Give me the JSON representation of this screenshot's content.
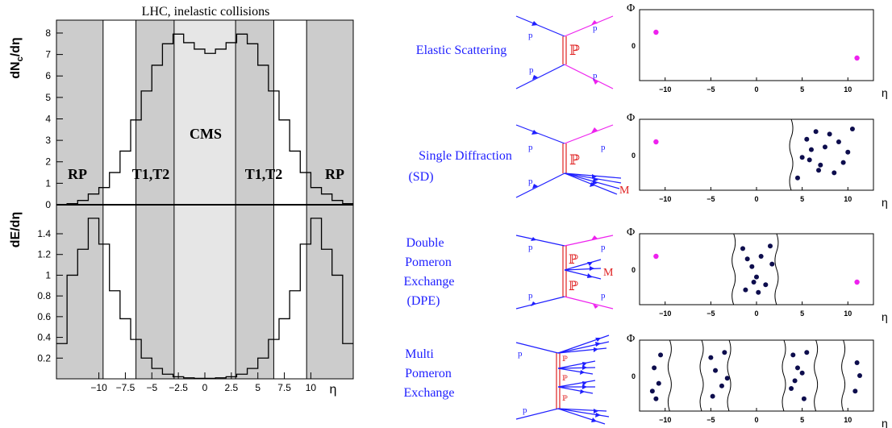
{
  "left_figure": {
    "title": "LHC, inelastic collisions",
    "top_ylabel": "dN",
    "top_ylabel_sub": "c",
    "top_ylabel_tail": "/dη",
    "bottom_ylabel": "dE/dη",
    "xlabel": "η",
    "region_labels": {
      "rp_left": "RP",
      "t_left": "T1,T2",
      "cms": "CMS",
      "t_right": "T1,T2",
      "rp_right": "RP"
    }
  },
  "processes": [
    {
      "label_lines": [
        "Elastic Scattering"
      ],
      "pomeron": "ℙ",
      "p_labels": [
        "p",
        "p",
        "p",
        "p"
      ]
    },
    {
      "label_lines": [
        "Single Diffraction",
        "(SD)"
      ],
      "pomeron": "ℙ",
      "p_labels": [
        "p",
        "p",
        "p"
      ],
      "m_label": "M"
    },
    {
      "label_lines": [
        "Double",
        "Pomeron",
        "Exchange",
        "(DPE)"
      ],
      "pomeron": "ℙ",
      "pomeron2": "ℙ",
      "p_labels": [
        "p",
        "p",
        "p",
        "p"
      ],
      "m_label": "M"
    },
    {
      "label_lines": [
        "Multi",
        "Pomeron",
        "Exchange"
      ],
      "pomeron": "ℙ",
      "p_labels": [
        "p",
        "p"
      ]
    }
  ],
  "eta_phi_axes": {
    "ylabel": "Φ",
    "xlabel": "η",
    "y_tick": "0"
  },
  "colors": {
    "gray_band": "#cccccc",
    "light_band": "#e6e6e6",
    "blue": "#1f1fff",
    "magenta": "#ee22ee",
    "red": "#e02020",
    "dot": "#0d0d4d"
  },
  "chart_data": [
    {
      "type": "line",
      "title": "LHC, inelastic collisions",
      "xlabel": "η",
      "ylabel": "dNc/dη",
      "xlim": [
        -14,
        14
      ],
      "ylim": [
        0,
        8.6
      ],
      "x_ticks": [
        -10,
        -7.5,
        -5,
        -2.5,
        0,
        2.5,
        5,
        7.5,
        10
      ],
      "y_ticks": [
        0,
        1,
        2,
        3,
        4,
        5,
        6,
        7,
        8
      ],
      "bands": [
        {
          "from": -14,
          "to": -9.6,
          "label": "RP",
          "shade": "gray"
        },
        {
          "from": -6.5,
          "to": -2.9,
          "label": "T1,T2",
          "shade": "gray"
        },
        {
          "from": -2.9,
          "to": 2.9,
          "label": "CMS",
          "shade": "light"
        },
        {
          "from": 2.9,
          "to": 6.5,
          "label": "T1,T2",
          "shade": "gray"
        },
        {
          "from": 9.6,
          "to": 14,
          "label": "RP",
          "shade": "gray"
        }
      ],
      "bin_edges": [
        -14,
        -13,
        -12,
        -11,
        -10,
        -9,
        -8,
        -7,
        -6,
        -5,
        -4,
        -3,
        -2,
        -1,
        0,
        1,
        2,
        3,
        4,
        5,
        6,
        7,
        8,
        9,
        10,
        11,
        12,
        13,
        14
      ],
      "values": [
        0,
        0.05,
        0.2,
        0.5,
        0.8,
        1.5,
        2.5,
        3.95,
        5.3,
        6.5,
        7.5,
        7.95,
        7.55,
        7.25,
        7.05,
        7.25,
        7.55,
        7.95,
        7.5,
        6.5,
        5.3,
        3.95,
        2.5,
        1.5,
        0.8,
        0.5,
        0.2,
        0.05
      ]
    },
    {
      "type": "line",
      "xlabel": "η",
      "ylabel": "dE/dη",
      "xlim": [
        -14,
        14
      ],
      "ylim": [
        0,
        1.68
      ],
      "x_ticks": [
        -10,
        -7.5,
        -5,
        -2.5,
        0,
        2.5,
        5,
        7.5,
        10
      ],
      "y_ticks": [
        0.2,
        0.4,
        0.6,
        0.8,
        1,
        1.2,
        1.4
      ],
      "bin_edges": [
        -14,
        -13,
        -12,
        -11,
        -10,
        -9,
        -8,
        -7,
        -6,
        -5,
        -4,
        -3,
        -2,
        -1,
        0,
        1,
        2,
        3,
        4,
        5,
        6,
        7,
        8,
        9,
        10,
        11,
        12,
        13,
        14
      ],
      "values": [
        0.34,
        1.0,
        1.25,
        1.55,
        1.3,
        0.85,
        0.58,
        0.38,
        0.2,
        0.1,
        0.045,
        0.02,
        0.01,
        0.005,
        0.005,
        0.01,
        0.02,
        0.045,
        0.1,
        0.2,
        0.38,
        0.58,
        0.85,
        1.3,
        1.55,
        1.25,
        1.0,
        0.34
      ]
    }
  ]
}
